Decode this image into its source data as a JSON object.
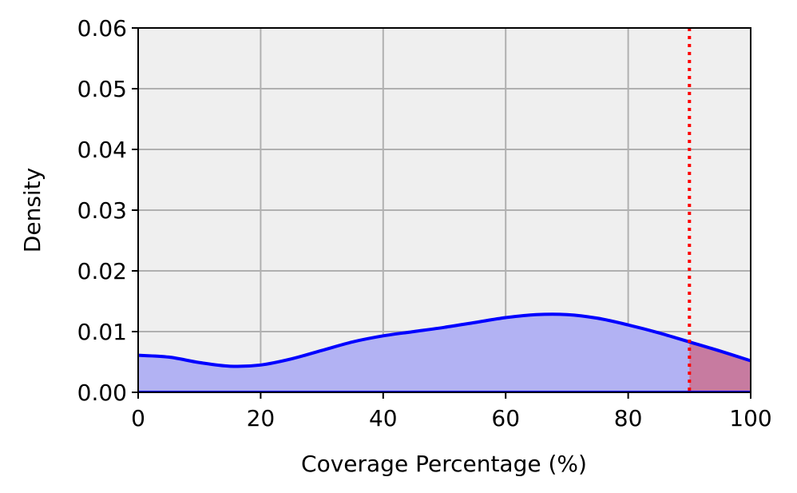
{
  "chart_data": {
    "type": "area",
    "title": "",
    "xlabel": "Coverage Percentage (%)",
    "ylabel": "Density",
    "xlim": [
      0,
      100
    ],
    "ylim": [
      0,
      0.06
    ],
    "xticks": [
      0,
      20,
      40,
      60,
      80,
      100
    ],
    "xtick_labels": [
      "0",
      "20",
      "40",
      "60",
      "80",
      "100"
    ],
    "yticks": [
      0.0,
      0.01,
      0.02,
      0.03,
      0.04,
      0.05,
      0.06
    ],
    "ytick_labels": [
      "0.00",
      "0.01",
      "0.02",
      "0.03",
      "0.04",
      "0.05",
      "0.06"
    ],
    "grid": true,
    "series": [
      {
        "x": [
          0,
          5,
          10,
          15,
          20,
          25,
          30,
          35,
          40,
          45,
          50,
          55,
          60,
          65,
          70,
          75,
          80,
          85,
          90,
          95,
          100
        ],
        "y": [
          0.0061,
          0.0058,
          0.0049,
          0.0043,
          0.0045,
          0.0055,
          0.0069,
          0.0083,
          0.0093,
          0.01,
          0.0107,
          0.0115,
          0.0123,
          0.0128,
          0.0128,
          0.0122,
          0.0111,
          0.0098,
          0.0083,
          0.0068,
          0.0052
        ]
      }
    ],
    "threshold": {
      "x": 90
    },
    "colors": {
      "line": "#0000ff",
      "fill": "#b2b2f3",
      "highlight_fill": "#c77ba0",
      "threshold_line": "#ff0000",
      "plot_background": "#efefef",
      "grid": "#b0b0b0"
    }
  }
}
